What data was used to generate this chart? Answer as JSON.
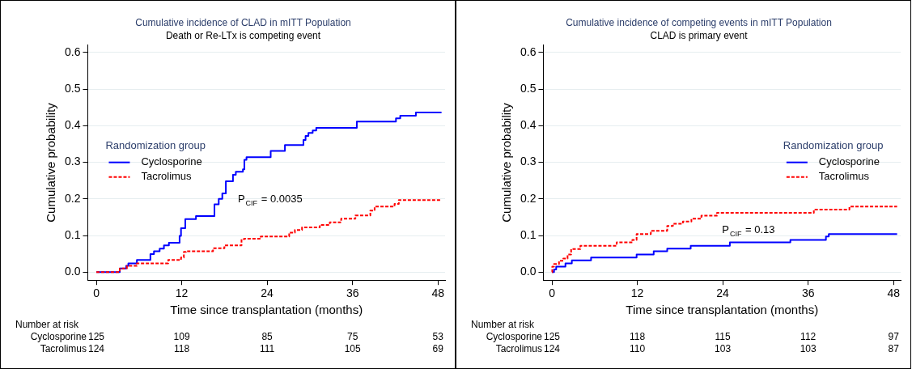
{
  "chart_data": [
    {
      "type": "step",
      "title": "Cumulative incidence of CLAD in mITT Population",
      "subtitle": "Death or Re-LTx is competing event",
      "xlabel": "Time since transplantation (months)",
      "ylabel": "Cumulative probability",
      "legend_title": "Randomization group",
      "legend": "left",
      "grid": "y",
      "xlim": [
        -1.2,
        49
      ],
      "xticks": [
        0,
        12,
        24,
        36,
        48
      ],
      "ylim": [
        -0.022,
        0.62
      ],
      "yticks": [
        {
          "value": 0,
          "label": "0.0"
        },
        {
          "value": 0.1,
          "label": "0.1"
        },
        {
          "value": 0.2,
          "label": "0.2"
        },
        {
          "value": 0.3,
          "label": "0.3"
        },
        {
          "value": 0.4,
          "label": "0.4"
        },
        {
          "value": 0.5,
          "label": "0.5"
        },
        {
          "value": 0.6,
          "label": "0.6"
        }
      ],
      "series": [
        {
          "name": "Cyclosporine",
          "color": "#0000ff",
          "line_style": "solid",
          "x": [
            0,
            3.3,
            4.2,
            4.5,
            5.7,
            7.6,
            8.1,
            8.9,
            9.5,
            10.2,
            11.7,
            11.9,
            12.5,
            14.0,
            16.6,
            17.2,
            17.7,
            18.2,
            19.2,
            19.6,
            20.6,
            20.8,
            21.1,
            24.5,
            26.5,
            29.1,
            29.4,
            29.8,
            30.4,
            30.9,
            36.6,
            42.1,
            42.7,
            44.9,
            48.5
          ],
          "values": [
            0,
            0.01,
            0.017,
            0.024,
            0.033,
            0.049,
            0.057,
            0.064,
            0.073,
            0.08,
            0.099,
            0.12,
            0.145,
            0.153,
            0.185,
            0.2,
            0.215,
            0.248,
            0.266,
            0.274,
            0.281,
            0.307,
            0.314,
            0.331,
            0.347,
            0.361,
            0.372,
            0.38,
            0.387,
            0.394,
            0.411,
            0.42,
            0.427,
            0.436,
            0.436
          ]
        },
        {
          "name": "Tacrolimus",
          "color": "#ff0000",
          "line_style": "dashed",
          "x": [
            0,
            3.3,
            4.3,
            5.7,
            10.1,
            11.9,
            12.3,
            12.6,
            16.4,
            18.0,
            20.4,
            20.8,
            23.1,
            27.1,
            27.9,
            28.9,
            31.4,
            32.8,
            34.4,
            36.4,
            38.5,
            39.1,
            41.9,
            42.5,
            48.5
          ],
          "values": [
            0,
            0.01,
            0.017,
            0.024,
            0.033,
            0.04,
            0.055,
            0.057,
            0.065,
            0.073,
            0.09,
            0.091,
            0.097,
            0.108,
            0.115,
            0.122,
            0.129,
            0.136,
            0.146,
            0.155,
            0.168,
            0.179,
            0.186,
            0.197,
            0.197
          ]
        }
      ],
      "annotations": [
        "P$_{CIF}$ = 0.0035",
        "Number at risk",
        "Cyclosporine",
        "125",
        "109",
        "85",
        "75",
        "53",
        "Tacrolimus",
        "124",
        "118",
        "111",
        "105",
        "69"
      ]
    },
    {
      "type": "step",
      "title": "Cumulative incidence of competing events in mITT Population",
      "subtitle": "CLAD is primary event",
      "xlabel": "Time since transplantation (months)",
      "ylabel": "Cumulative probability",
      "legend_title": "Randomization group",
      "legend": "right",
      "grid": "y",
      "xlim": [
        -1.2,
        49
      ],
      "xticks": [
        0,
        12,
        24,
        36,
        48
      ],
      "ylim": [
        -0.022,
        0.62
      ],
      "yticks": [
        {
          "value": 0,
          "label": "0.0"
        },
        {
          "value": 0.1,
          "label": "0.1"
        },
        {
          "value": 0.2,
          "label": "0.2"
        },
        {
          "value": 0.3,
          "label": "0.3"
        },
        {
          "value": 0.4,
          "label": "0.4"
        },
        {
          "value": 0.5,
          "label": "0.5"
        },
        {
          "value": 0.6,
          "label": "0.6"
        }
      ],
      "series": [
        {
          "name": "Cyclosporine",
          "color": "#0000ff",
          "line_style": "solid",
          "x": [
            0,
            0.3,
            0.6,
            1.9,
            2.8,
            5.5,
            11.9,
            14.3,
            16.2,
            19.5,
            25.0,
            33.5,
            38.5,
            38.9,
            48.5
          ],
          "values": [
            0,
            0.007,
            0.015,
            0.024,
            0.032,
            0.04,
            0.048,
            0.057,
            0.064,
            0.072,
            0.081,
            0.088,
            0.097,
            0.104,
            0.104
          ]
        },
        {
          "name": "Tacrolimus",
          "color": "#ff0000",
          "line_style": "dashed",
          "x": [
            0,
            0.05,
            0.3,
            1.0,
            1.6,
            2.2,
            2.7,
            4.0,
            9.1,
            11.3,
            11.9,
            13.9,
            16.2,
            17.0,
            18.4,
            19.6,
            21.0,
            23.2,
            36.8,
            41.8,
            48.5
          ],
          "values": [
            0,
            0.015,
            0.022,
            0.031,
            0.037,
            0.048,
            0.063,
            0.072,
            0.081,
            0.088,
            0.104,
            0.113,
            0.126,
            0.132,
            0.138,
            0.146,
            0.154,
            0.162,
            0.171,
            0.179,
            0.179
          ]
        }
      ],
      "annotations": [
        "P$_{CIF}$ = 0.13",
        "Number at risk",
        "Cyclosporine",
        "125",
        "118",
        "115",
        "112",
        "97",
        "Tacrolimus",
        "124",
        "110",
        "103",
        "103",
        "87"
      ]
    }
  ]
}
